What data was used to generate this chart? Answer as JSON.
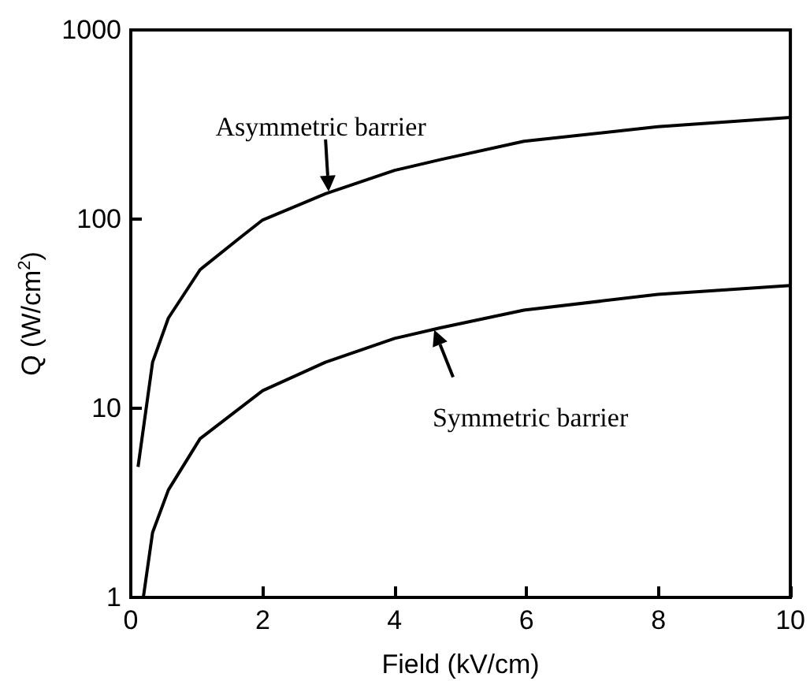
{
  "chart_data": {
    "type": "line",
    "xlabel": "Field (kV/cm)",
    "ylabel": "Q (W/cm$^{2}$)",
    "log": "y",
    "xlim": [
      0,
      10
    ],
    "xticks": [
      0,
      2,
      4,
      6,
      8,
      10
    ],
    "ylim": [
      1,
      1000
    ],
    "yticks": [
      1,
      10,
      100,
      1000
    ],
    "grid": false,
    "marker": "none",
    "line_style": "solid",
    "series": [
      {
        "color": "#000000",
        "x": [
          0.11,
          0.33,
          0.57,
          1.05,
          1.68,
          2,
          2.95,
          4,
          4.69,
          5.96,
          7.99,
          10
        ],
        "values": [
          4.9,
          17.5,
          30,
          54,
          81,
          99,
          136,
          181,
          206,
          258,
          308,
          345
        ]
      },
      {
        "color": "#000000",
        "x": [
          0.19,
          0.33,
          0.57,
          1.05,
          2,
          2.95,
          4,
          4.69,
          5.96,
          7.99,
          10
        ],
        "values": [
          1,
          2.2,
          3.7,
          6.9,
          12.4,
          17.5,
          23.4,
          26.6,
          33,
          40,
          44.6
        ]
      }
    ],
    "annotations": [
      {
        "text": "Asymmetric barrier",
        "x": 3,
        "y": 140
      },
      {
        "text": "Symmetric barrier",
        "x": 4.6,
        "y": 26
      }
    ]
  }
}
